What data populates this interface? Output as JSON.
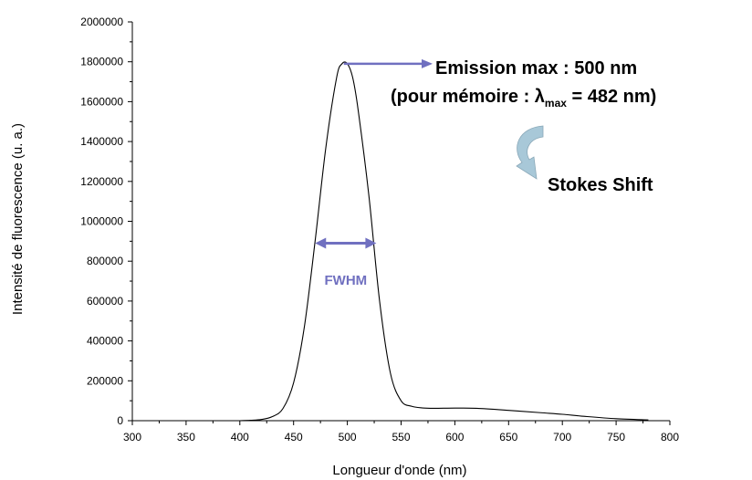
{
  "chart_data": {
    "type": "line",
    "xlabel": "Longueur d'onde (nm)",
    "ylabel": "Intensité de fluorescence (u. a.)",
    "xlim": [
      300,
      800
    ],
    "ylim": [
      0,
      2000000
    ],
    "x_ticks": [
      300,
      350,
      400,
      450,
      500,
      550,
      600,
      650,
      700,
      750,
      800
    ],
    "y_ticks": [
      0,
      200000,
      400000,
      600000,
      800000,
      1000000,
      1200000,
      1400000,
      1600000,
      1800000,
      2000000
    ],
    "grid": false,
    "series": [
      {
        "x": [
          400,
          410,
          420,
          430,
          440,
          450,
          460,
          470,
          480,
          490,
          495,
          500,
          505,
          510,
          520,
          530,
          540,
          550,
          560,
          570,
          580,
          600,
          620,
          650,
          680,
          700,
          720,
          750,
          780
        ],
        "y": [
          0,
          2000,
          6000,
          20000,
          60000,
          190000,
          470000,
          900000,
          1370000,
          1720000,
          1790000,
          1790000,
          1720000,
          1560000,
          1130000,
          600000,
          240000,
          100000,
          72000,
          64000,
          62000,
          63000,
          62000,
          52000,
          40000,
          32000,
          22000,
          10000,
          4000
        ]
      }
    ],
    "annotations": {
      "emission_text": "Emission max : 500 nm",
      "memo_prefix": "(pour mémoire : λ",
      "memo_sub": "max",
      "memo_suffix": " = 482 nm)",
      "stokes_text": "Stokes Shift",
      "fwhm_text": "FWHM",
      "fwhm_x_range": [
        470,
        527
      ],
      "fwhm_y": 890000,
      "arrow_color": "#7070c0",
      "stokes_arrow_color": "#a8c8d8"
    }
  }
}
